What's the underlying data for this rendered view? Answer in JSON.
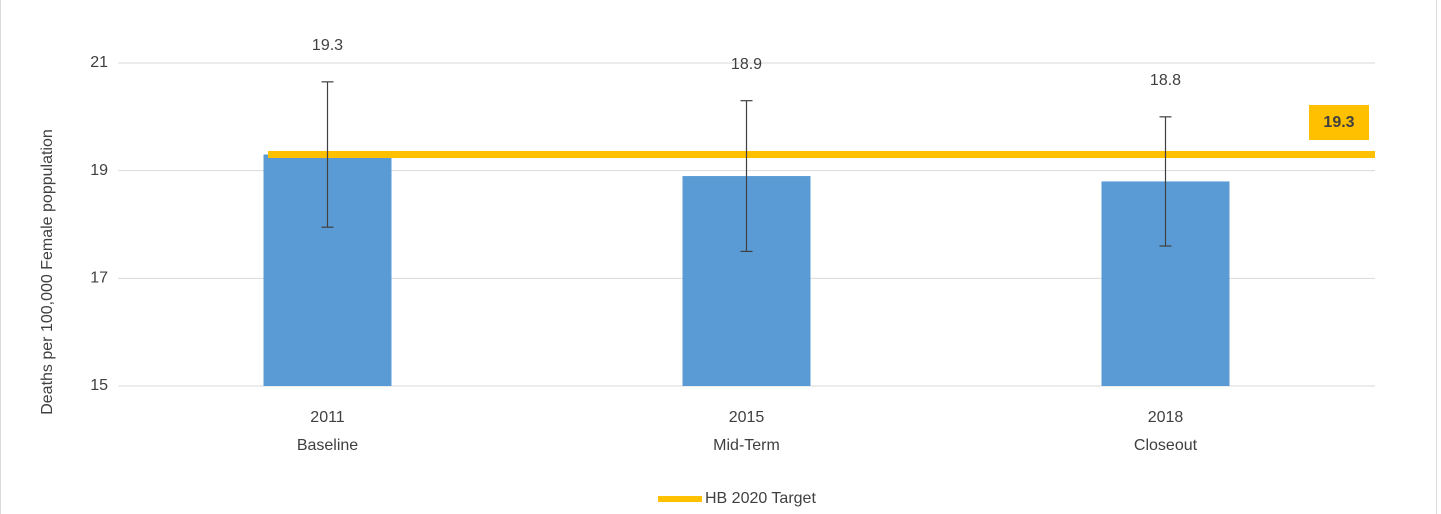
{
  "chart_data": {
    "type": "bar",
    "y_axis_label": "Deaths per 100,000 Female poppulation",
    "categories": [
      "2011",
      "2015",
      "2018"
    ],
    "category_sublabels": [
      "Baseline",
      "Mid-Term",
      "Closeout"
    ],
    "values": [
      19.3,
      18.9,
      18.8
    ],
    "errors": [
      1.35,
      1.4,
      1.2
    ],
    "color": "#5b9bd5",
    "target": {
      "name": "HB 2020 Target",
      "value": 19.3,
      "color": "#ffc000"
    },
    "ylim": [
      15,
      21
    ],
    "yticks": [
      15,
      17,
      19,
      21
    ],
    "grid": true,
    "legend": "bottom"
  }
}
